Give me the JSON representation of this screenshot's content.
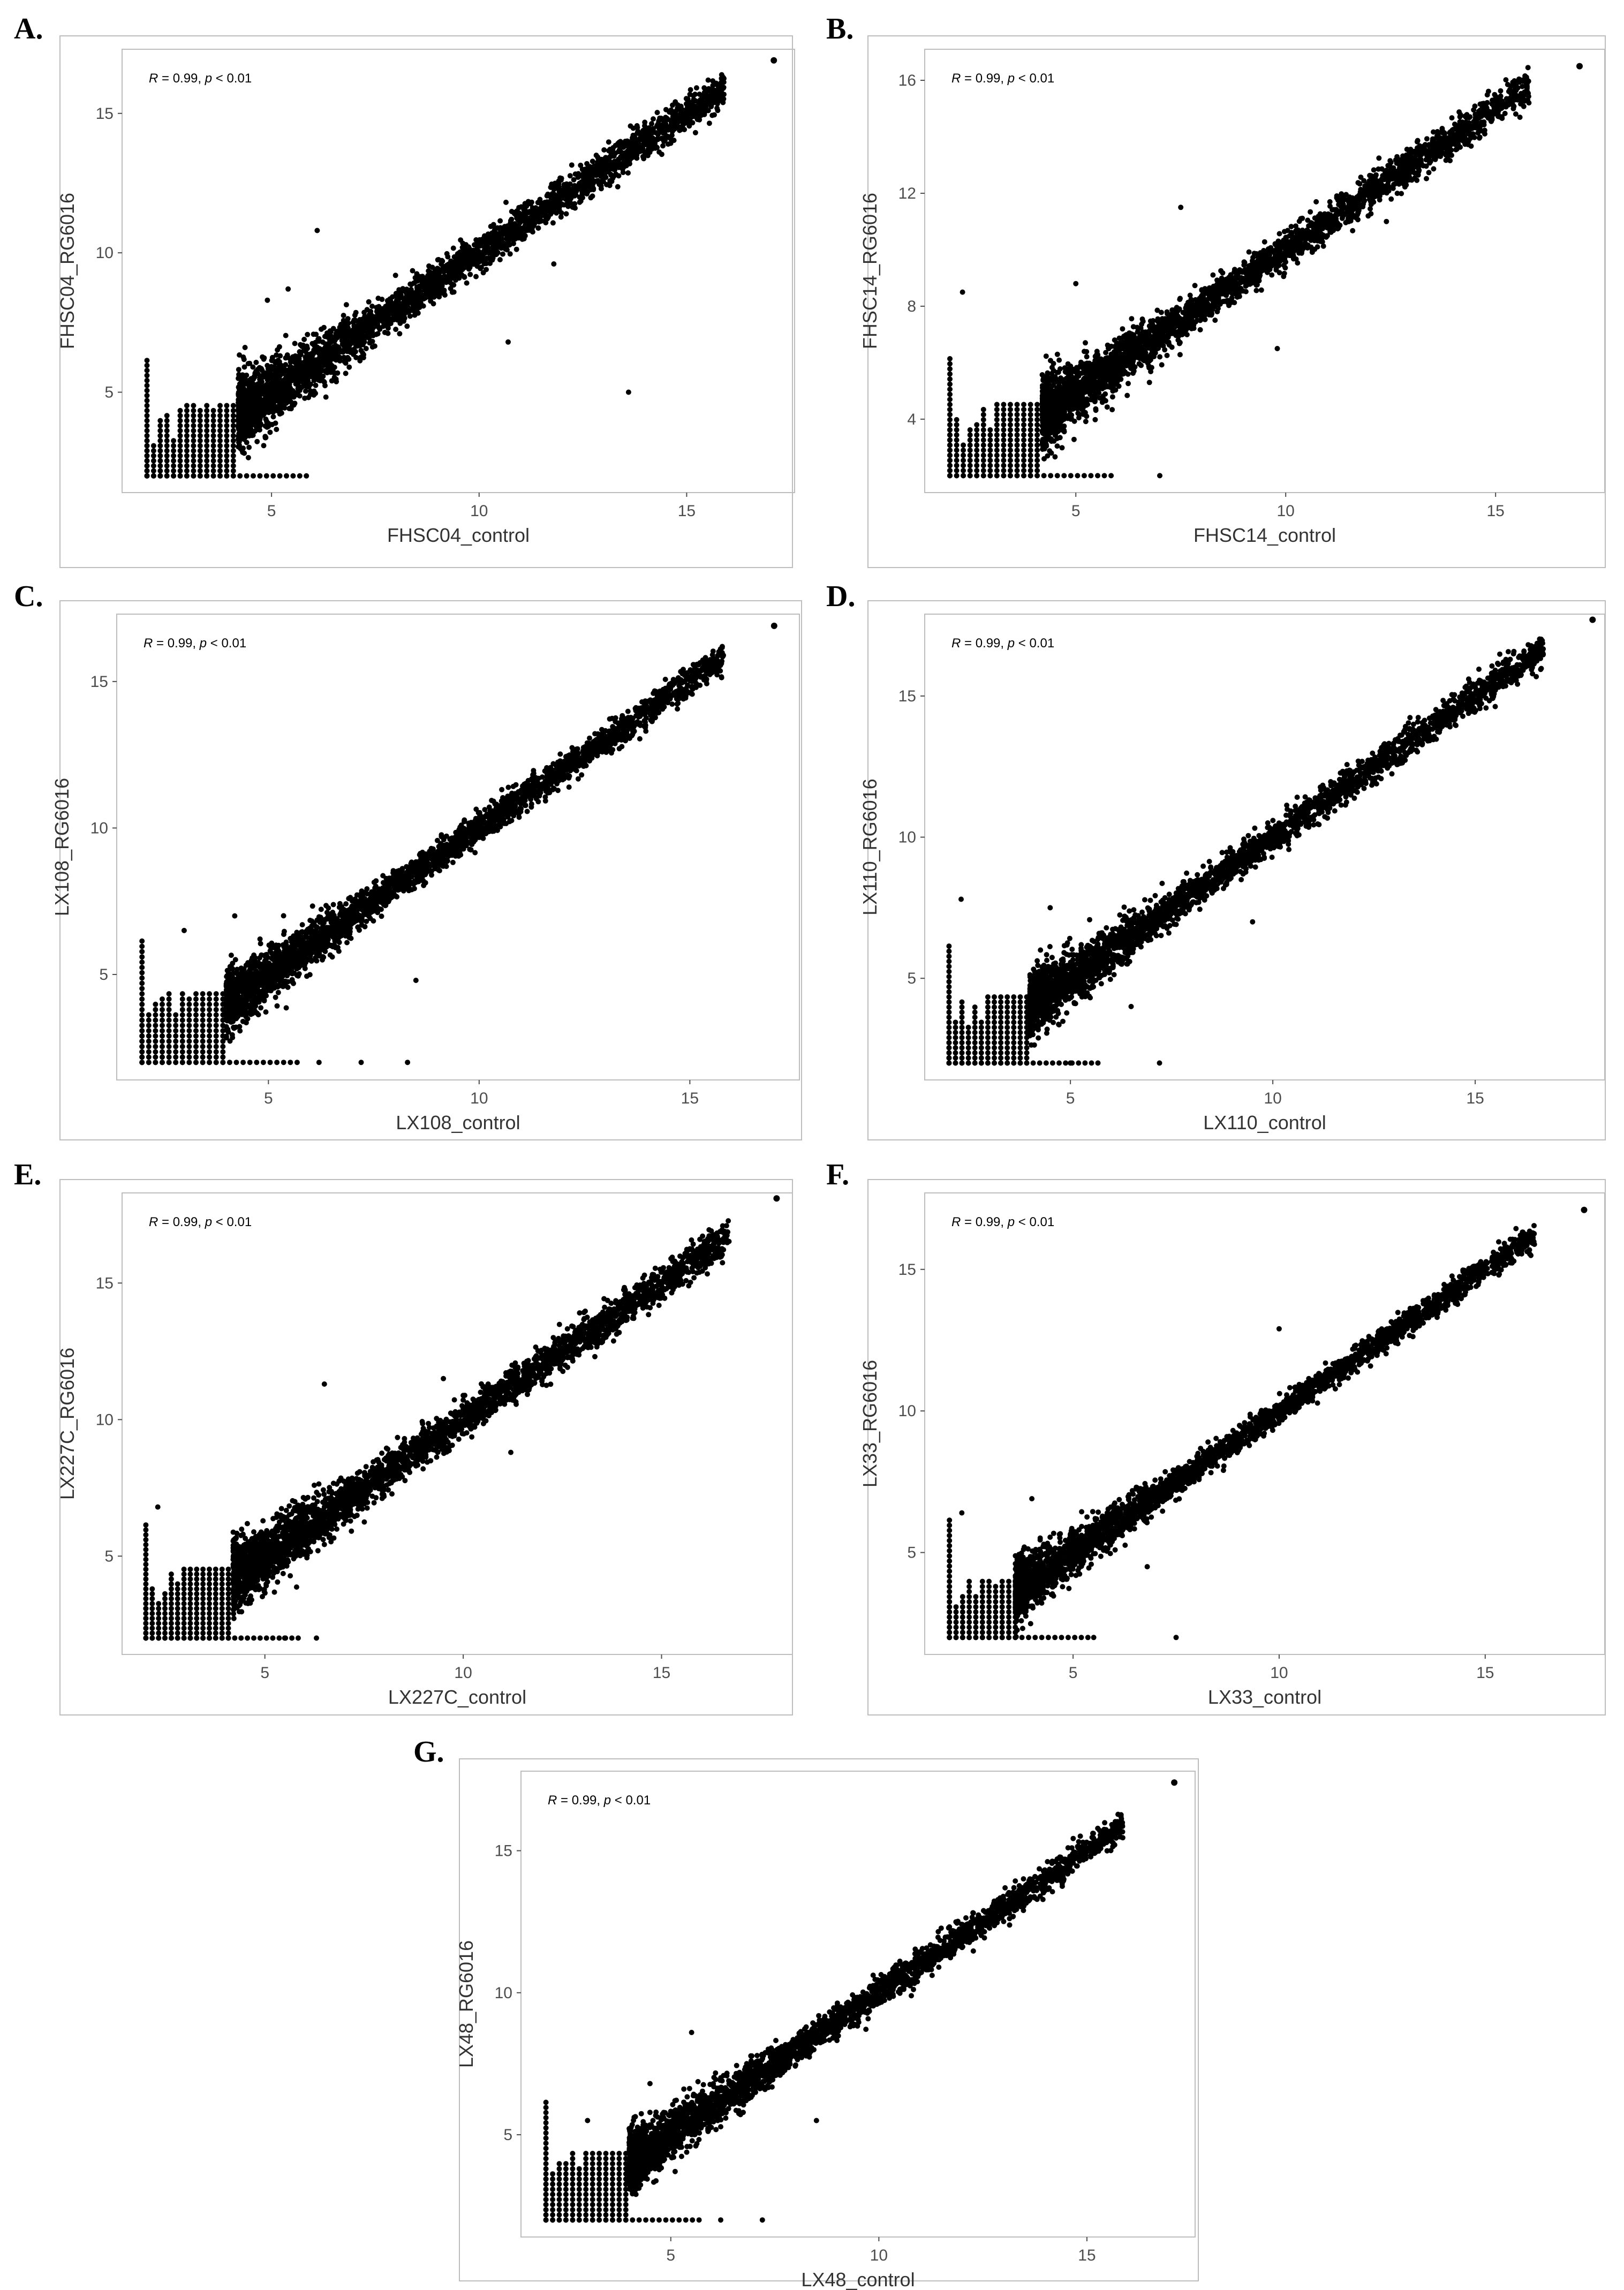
{
  "figure": {
    "panel_labels": [
      "A.",
      "B.",
      "C.",
      "D.",
      "E.",
      "F.",
      "G."
    ]
  },
  "colors": {
    "point": "#000000",
    "frame": "#bdbdbd",
    "text": "#333333",
    "tick": "#4d4d4d"
  },
  "chart_data": [
    {
      "type": "scatter",
      "panel": "A.",
      "title": "",
      "annotation": {
        "r_label": "R",
        "r_value": " = 0.99, ",
        "p_label": "p",
        "p_value": " < 0.01"
      },
      "xlabel": "FHSC04_control",
      "ylabel": "FHSC04_RG6016",
      "xlim": [
        1.4,
        17.6
      ],
      "ylim": [
        1.4,
        17.3
      ],
      "xticks": [
        5,
        10,
        15
      ],
      "yticks": [
        5,
        10,
        15
      ],
      "trend": {
        "slope": 1.0,
        "intercept": 0.0,
        "spread": 0.32
      },
      "floor": {
        "min": 2,
        "max": 4.2
      },
      "extreme_point": [
        17.1,
        16.9
      ],
      "outliers": [
        [
          13.6,
          5.0
        ],
        [
          11.8,
          9.6
        ],
        [
          10.7,
          6.8
        ],
        [
          6.1,
          10.8
        ],
        [
          5.4,
          8.7
        ],
        [
          4.9,
          8.3
        ]
      ],
      "n_points": 3200,
      "seed": 11
    },
    {
      "type": "scatter",
      "panel": "B.",
      "title": "",
      "annotation": {
        "r_label": "R",
        "r_value": " = 0.99, ",
        "p_label": "p",
        "p_value": " < 0.01"
      },
      "xlabel": "FHSC14_control",
      "ylabel": "FHSC14_RG6016",
      "xlim": [
        1.4,
        17.6
      ],
      "ylim": [
        1.4,
        17.1
      ],
      "xticks": [
        5,
        10,
        15
      ],
      "yticks": [
        4,
        8,
        12,
        16
      ],
      "trend": {
        "slope": 1.0,
        "intercept": 0.0,
        "spread": 0.3
      },
      "floor": {
        "min": 2,
        "max": 4.2
      },
      "extreme_point": [
        17.0,
        16.5
      ],
      "outliers": [
        [
          7.0,
          2.0
        ],
        [
          9.8,
          6.5
        ],
        [
          5.0,
          8.8
        ],
        [
          7.5,
          11.5
        ],
        [
          12.4,
          11.0
        ],
        [
          2.3,
          8.5
        ]
      ],
      "n_points": 3200,
      "seed": 23
    },
    {
      "type": "scatter",
      "panel": "C.",
      "title": "",
      "annotation": {
        "r_label": "R",
        "r_value": " = 0.99, ",
        "p_label": "p",
        "p_value": " < 0.01"
      },
      "xlabel": "LX108_control",
      "ylabel": "LX108_RG6016",
      "xlim": [
        1.4,
        17.6
      ],
      "ylim": [
        1.4,
        17.3
      ],
      "xticks": [
        5,
        10,
        15
      ],
      "yticks": [
        5,
        10,
        15
      ],
      "trend": {
        "slope": 1.0,
        "intercept": 0.0,
        "spread": 0.25
      },
      "floor": {
        "min": 2,
        "max": 4.0
      },
      "extreme_point": [
        17.0,
        16.9
      ],
      "outliers": [
        [
          8.3,
          2.0
        ],
        [
          8.5,
          4.8
        ],
        [
          7.2,
          2.0
        ],
        [
          3.0,
          6.5
        ],
        [
          6.2,
          2.0
        ],
        [
          4.2,
          7.0
        ]
      ],
      "n_points": 3000,
      "seed": 37
    },
    {
      "type": "scatter",
      "panel": "D.",
      "title": "",
      "annotation": {
        "r_label": "R",
        "r_value": " = 0.99, ",
        "p_label": "p",
        "p_value": " < 0.01"
      },
      "xlabel": "LX110_control",
      "ylabel": "LX110_RG6016",
      "xlim": [
        1.4,
        18.2
      ],
      "ylim": [
        1.4,
        17.9
      ],
      "xticks": [
        5,
        10,
        15
      ],
      "yticks": [
        5,
        10,
        15
      ],
      "trend": {
        "slope": 1.0,
        "intercept": 0.0,
        "spread": 0.27
      },
      "floor": {
        "min": 2,
        "max": 4.0
      },
      "extreme_point": [
        17.9,
        17.7
      ],
      "outliers": [
        [
          7.2,
          2.0
        ],
        [
          5.0,
          2.0
        ],
        [
          2.3,
          7.8
        ],
        [
          4.5,
          7.5
        ],
        [
          9.5,
          7.0
        ],
        [
          6.5,
          4.0
        ]
      ],
      "n_points": 3000,
      "seed": 41
    },
    {
      "type": "scatter",
      "panel": "E.",
      "title": "",
      "annotation": {
        "r_label": "R",
        "r_value": " = 0.99, ",
        "p_label": "p",
        "p_value": " < 0.01"
      },
      "xlabel": "LX227C_control",
      "ylabel": "LX227C_RG6016",
      "xlim": [
        1.4,
        18.3
      ],
      "ylim": [
        1.4,
        18.3
      ],
      "xticks": [
        5,
        10,
        15
      ],
      "yticks": [
        5,
        10,
        15
      ],
      "trend": {
        "slope": 1.0,
        "intercept": 0.0,
        "spread": 0.32
      },
      "floor": {
        "min": 2,
        "max": 4.2
      },
      "extreme_point": [
        17.9,
        18.1
      ],
      "outliers": [
        [
          6.5,
          11.3
        ],
        [
          5.5,
          2.0
        ],
        [
          6.3,
          2.0
        ],
        [
          2.3,
          6.8
        ],
        [
          11.2,
          8.8
        ],
        [
          9.5,
          11.5
        ]
      ],
      "n_points": 3200,
      "seed": 53
    },
    {
      "type": "scatter",
      "panel": "F.",
      "title": "",
      "annotation": {
        "r_label": "R",
        "r_value": " = 0.99, ",
        "p_label": "p",
        "p_value": " < 0.01"
      },
      "xlabel": "LX33_control",
      "ylabel": "LX33_RG6016",
      "xlim": [
        1.4,
        17.9
      ],
      "ylim": [
        1.4,
        17.7
      ],
      "xticks": [
        5,
        10,
        15
      ],
      "yticks": [
        5,
        10,
        15
      ],
      "trend": {
        "slope": 1.0,
        "intercept": 0.0,
        "spread": 0.22
      },
      "floor": {
        "min": 2,
        "max": 3.6
      },
      "extreme_point": [
        17.4,
        17.1
      ],
      "outliers": [
        [
          10.0,
          12.9
        ],
        [
          7.5,
          2.0
        ],
        [
          5.5,
          2.0
        ],
        [
          2.3,
          6.4
        ],
        [
          6.8,
          4.5
        ],
        [
          4.0,
          6.9
        ]
      ],
      "n_points": 3000,
      "seed": 67
    },
    {
      "type": "scatter",
      "panel": "G.",
      "title": "",
      "annotation": {
        "r_label": "R",
        "r_value": " = 0.99, ",
        "p_label": "p",
        "p_value": " < 0.01"
      },
      "xlabel": "LX48_control",
      "ylabel": "LX48_RG6016",
      "xlim": [
        1.4,
        17.6
      ],
      "ylim": [
        1.4,
        17.8
      ],
      "xticks": [
        5,
        10,
        15
      ],
      "yticks": [
        5,
        10,
        15
      ],
      "trend": {
        "slope": 1.0,
        "intercept": 0.0,
        "spread": 0.25
      },
      "floor": {
        "min": 2,
        "max": 4.0
      },
      "extreme_point": [
        17.1,
        17.4
      ],
      "outliers": [
        [
          5.5,
          8.6
        ],
        [
          7.2,
          2.0
        ],
        [
          6.2,
          2.0
        ],
        [
          3.0,
          5.5
        ],
        [
          8.5,
          5.5
        ],
        [
          4.5,
          6.8
        ]
      ],
      "n_points": 3000,
      "seed": 79
    }
  ]
}
